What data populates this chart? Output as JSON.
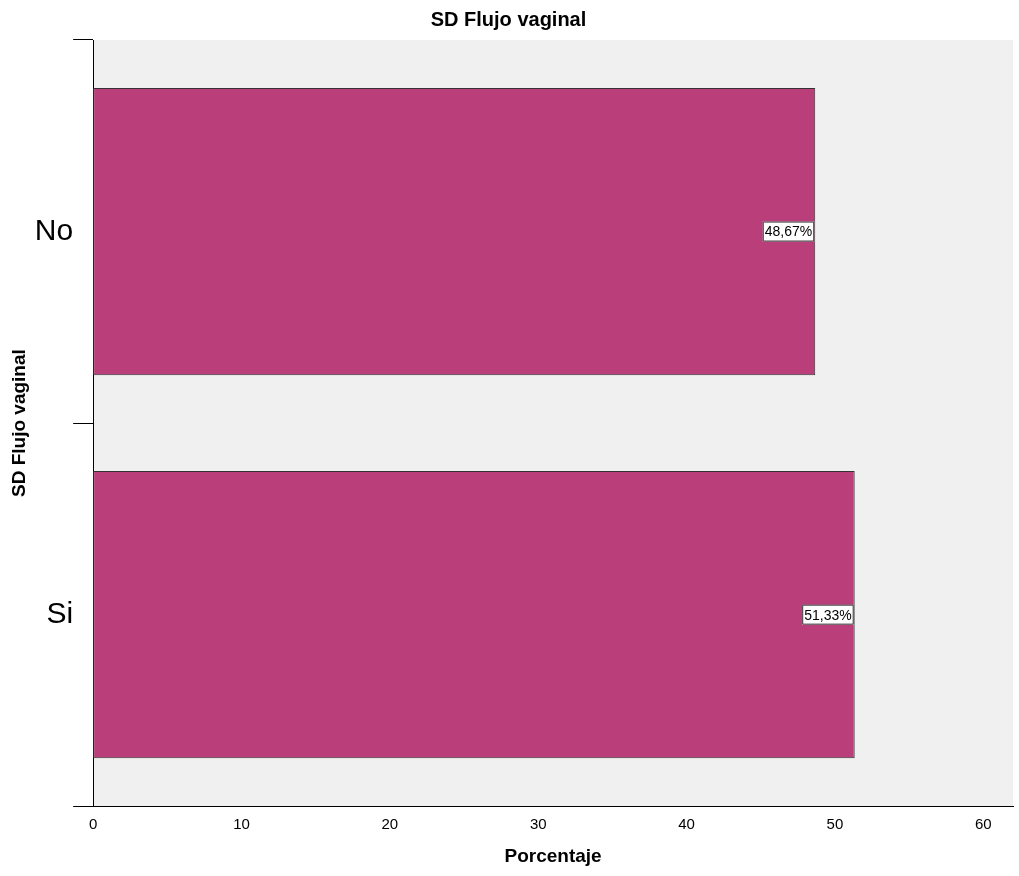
{
  "chart_data": {
    "type": "bar",
    "orientation": "horizontal",
    "title": "SD Flujo vaginal",
    "xlabel": "Porcentaje",
    "ylabel": "SD Flujo vaginal",
    "categories": [
      "No",
      "Si"
    ],
    "values": [
      48.67,
      51.33
    ],
    "value_labels": [
      "48,67%",
      "51,33%"
    ],
    "color": "#b93e7a",
    "xlim": [
      0,
      62
    ],
    "xticks": [
      0,
      10,
      20,
      30,
      40,
      50,
      60
    ]
  }
}
